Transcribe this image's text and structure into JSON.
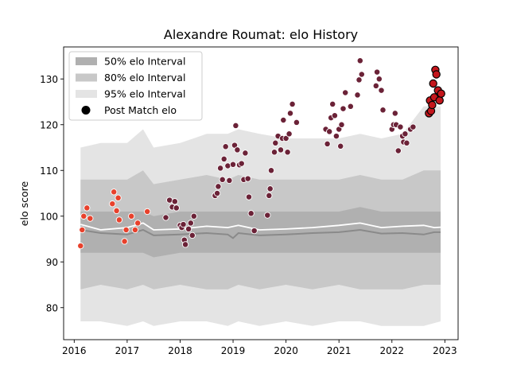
{
  "chart_data": {
    "type": "scatter",
    "title": "Alexandre Roumat: elo History",
    "xlabel": "",
    "ylabel": "elo score",
    "xlim": [
      2015.8,
      2023.25
    ],
    "ylim": [
      73,
      137
    ],
    "x_ticks": [
      2016,
      2017,
      2018,
      2019,
      2020,
      2021,
      2022,
      2023
    ],
    "y_ticks": [
      80,
      90,
      100,
      110,
      120,
      130
    ],
    "grid": false,
    "legend_position": "top-left",
    "legend": [
      {
        "label": "50% elo Interval",
        "color": "#b0b0b0"
      },
      {
        "label": "80% elo Interval",
        "color": "#c8c8c8"
      },
      {
        "label": "95% elo Interval",
        "color": "#e4e4e4"
      },
      {
        "label": "Post Match elo",
        "color": "#000000"
      }
    ],
    "bands": {
      "x": [
        2016.12,
        2016.5,
        2017.0,
        2017.3,
        2017.5,
        2018.0,
        2018.5,
        2018.9,
        2019.1,
        2019.5,
        2020.0,
        2020.5,
        2021.0,
        2021.4,
        2021.8,
        2022.2,
        2022.6,
        2022.92
      ],
      "p95": [
        [
          77,
          115
        ],
        [
          77,
          116
        ],
        [
          76,
          116
        ],
        [
          77,
          119
        ],
        [
          76,
          115
        ],
        [
          77,
          116
        ],
        [
          77,
          118
        ],
        [
          76,
          118
        ],
        [
          77,
          119
        ],
        [
          76,
          118
        ],
        [
          77,
          117
        ],
        [
          76,
          117
        ],
        [
          77,
          117
        ],
        [
          77,
          118
        ],
        [
          76,
          117
        ],
        [
          76,
          118
        ],
        [
          76,
          124
        ],
        [
          77,
          124
        ]
      ],
      "p80": [
        [
          84,
          108
        ],
        [
          85,
          108
        ],
        [
          84,
          108
        ],
        [
          85,
          110
        ],
        [
          84,
          107
        ],
        [
          85,
          108
        ],
        [
          84,
          109
        ],
        [
          84,
          108
        ],
        [
          85,
          109
        ],
        [
          84,
          108
        ],
        [
          85,
          108
        ],
        [
          84,
          108
        ],
        [
          85,
          108
        ],
        [
          84,
          109
        ],
        [
          84,
          108
        ],
        [
          84,
          108
        ],
        [
          85,
          110
        ],
        [
          85,
          110
        ]
      ],
      "p50": [
        [
          92,
          101
        ],
        [
          92,
          101
        ],
        [
          92,
          101
        ],
        [
          92,
          101
        ],
        [
          91,
          100
        ],
        [
          92,
          101
        ],
        [
          92,
          101
        ],
        [
          92,
          101
        ],
        [
          92,
          101
        ],
        [
          92,
          101
        ],
        [
          92,
          101
        ],
        [
          92,
          101
        ],
        [
          92,
          101
        ],
        [
          92,
          102
        ],
        [
          92,
          101
        ],
        [
          92,
          101
        ],
        [
          92,
          101
        ],
        [
          92,
          101
        ]
      ]
    },
    "median_dark": {
      "x": [
        2016.12,
        2016.5,
        2017.0,
        2017.3,
        2017.5,
        2018.0,
        2018.5,
        2018.9,
        2019.0,
        2019.1,
        2019.5,
        2020.0,
        2020.5,
        2021.0,
        2021.4,
        2021.8,
        2022.2,
        2022.6,
        2022.8,
        2022.92
      ],
      "y": [
        97.0,
        96.3,
        96.0,
        97.0,
        95.8,
        96.0,
        96.3,
        96.0,
        95.2,
        96.3,
        95.8,
        96.0,
        96.3,
        96.5,
        97.0,
        96.2,
        96.3,
        96.0,
        96.5,
        96.5
      ]
    },
    "median_light": {
      "x": [
        2016.12,
        2016.5,
        2017.0,
        2017.3,
        2017.5,
        2018.0,
        2018.5,
        2018.9,
        2019.1,
        2019.5,
        2020.0,
        2020.5,
        2021.0,
        2021.4,
        2021.8,
        2022.2,
        2022.6,
        2022.8,
        2022.92
      ],
      "y": [
        98.2,
        97.0,
        97.5,
        98.5,
        97.0,
        97.2,
        97.8,
        97.5,
        98.0,
        97.0,
        97.2,
        97.5,
        98.0,
        98.5,
        97.5,
        97.8,
        98.0,
        97.5,
        97.6
      ]
    },
    "series": [
      {
        "color": "#e8412c",
        "points": [
          [
            2016.12,
            93.5
          ],
          [
            2016.15,
            97.0
          ],
          [
            2016.18,
            100.0
          ],
          [
            2016.24,
            101.8
          ],
          [
            2016.3,
            99.5
          ],
          [
            2016.72,
            102.7
          ],
          [
            2016.75,
            105.3
          ],
          [
            2016.8,
            101.2
          ],
          [
            2016.83,
            104.0
          ],
          [
            2016.85,
            99.2
          ],
          [
            2016.95,
            94.5
          ],
          [
            2016.98,
            97.0
          ],
          [
            2017.08,
            100.0
          ],
          [
            2017.15,
            97.0
          ],
          [
            2017.2,
            98.5
          ],
          [
            2017.38,
            101.0
          ]
        ]
      },
      {
        "color": "#6b2237",
        "points": [
          [
            2017.73,
            99.7
          ],
          [
            2017.8,
            103.5
          ],
          [
            2017.85,
            102.0
          ],
          [
            2017.9,
            103.2
          ],
          [
            2017.93,
            101.8
          ],
          [
            2018.0,
            98.0
          ],
          [
            2018.03,
            97.5
          ],
          [
            2018.06,
            98.2
          ],
          [
            2018.08,
            94.8
          ],
          [
            2018.1,
            93.8
          ],
          [
            2018.16,
            97.2
          ],
          [
            2018.2,
            98.5
          ],
          [
            2018.23,
            95.8
          ],
          [
            2018.26,
            100.0
          ],
          [
            2018.66,
            104.5
          ],
          [
            2018.7,
            105.0
          ],
          [
            2018.72,
            106.5
          ],
          [
            2018.76,
            110.5
          ],
          [
            2018.8,
            108.0
          ],
          [
            2018.83,
            112.5
          ],
          [
            2018.86,
            115.2
          ],
          [
            2018.9,
            111.0
          ],
          [
            2018.93,
            107.8
          ],
          [
            2019.0,
            111.3
          ],
          [
            2019.03,
            115.5
          ],
          [
            2019.05,
            119.8
          ],
          [
            2019.08,
            114.5
          ],
          [
            2019.12,
            111.2
          ],
          [
            2019.16,
            111.5
          ],
          [
            2019.2,
            108.0
          ],
          [
            2019.23,
            113.8
          ],
          [
            2019.28,
            108.2
          ],
          [
            2019.3,
            104.2
          ],
          [
            2019.34,
            100.6
          ],
          [
            2019.4,
            96.8
          ],
          [
            2019.65,
            100.2
          ],
          [
            2019.68,
            104.5
          ],
          [
            2019.7,
            106.0
          ],
          [
            2019.72,
            110.0
          ],
          [
            2019.78,
            114.0
          ],
          [
            2019.8,
            116.0
          ],
          [
            2019.85,
            117.5
          ],
          [
            2019.9,
            114.5
          ],
          [
            2019.93,
            117.0
          ],
          [
            2019.95,
            121.0
          ],
          [
            2020.0,
            117.0
          ],
          [
            2020.03,
            114.0
          ],
          [
            2020.06,
            118.0
          ],
          [
            2020.08,
            122.5
          ],
          [
            2020.12,
            124.5
          ],
          [
            2020.2,
            120.5
          ],
          [
            2020.75,
            119.0
          ],
          [
            2020.78,
            115.8
          ],
          [
            2020.82,
            118.5
          ],
          [
            2020.85,
            121.5
          ],
          [
            2020.88,
            124.5
          ],
          [
            2020.92,
            122.0
          ],
          [
            2020.95,
            117.5
          ],
          [
            2021.0,
            119.0
          ],
          [
            2021.03,
            115.3
          ],
          [
            2021.05,
            120.0
          ],
          [
            2021.08,
            123.5
          ],
          [
            2021.12,
            127.0
          ],
          [
            2021.22,
            124.0
          ],
          [
            2021.35,
            126.5
          ],
          [
            2021.38,
            129.8
          ],
          [
            2021.4,
            134.0
          ],
          [
            2021.43,
            131.0
          ],
          [
            2021.7,
            128.5
          ],
          [
            2021.72,
            131.5
          ],
          [
            2021.76,
            130.0
          ],
          [
            2021.8,
            127.5
          ],
          [
            2021.83,
            123.2
          ],
          [
            2022.0,
            119.0
          ],
          [
            2022.03,
            120.0
          ],
          [
            2022.06,
            122.5
          ],
          [
            2022.08,
            120.0
          ],
          [
            2022.12,
            114.3
          ],
          [
            2022.16,
            119.5
          ],
          [
            2022.2,
            117.5
          ],
          [
            2022.22,
            116.2
          ],
          [
            2022.25,
            118.0
          ],
          [
            2022.28,
            116.0
          ],
          [
            2022.35,
            119.0
          ],
          [
            2022.4,
            119.5
          ]
        ]
      },
      {
        "color": "#c4161c",
        "points": [
          [
            2022.7,
            122.5
          ],
          [
            2022.72,
            125.3
          ],
          [
            2022.74,
            123.0
          ],
          [
            2022.76,
            124.3
          ],
          [
            2022.78,
            129.0
          ],
          [
            2022.8,
            126.0
          ],
          [
            2022.82,
            132.0
          ],
          [
            2022.84,
            131.0
          ],
          [
            2022.87,
            127.5
          ],
          [
            2022.9,
            125.3
          ],
          [
            2022.93,
            126.8
          ]
        ]
      }
    ]
  }
}
